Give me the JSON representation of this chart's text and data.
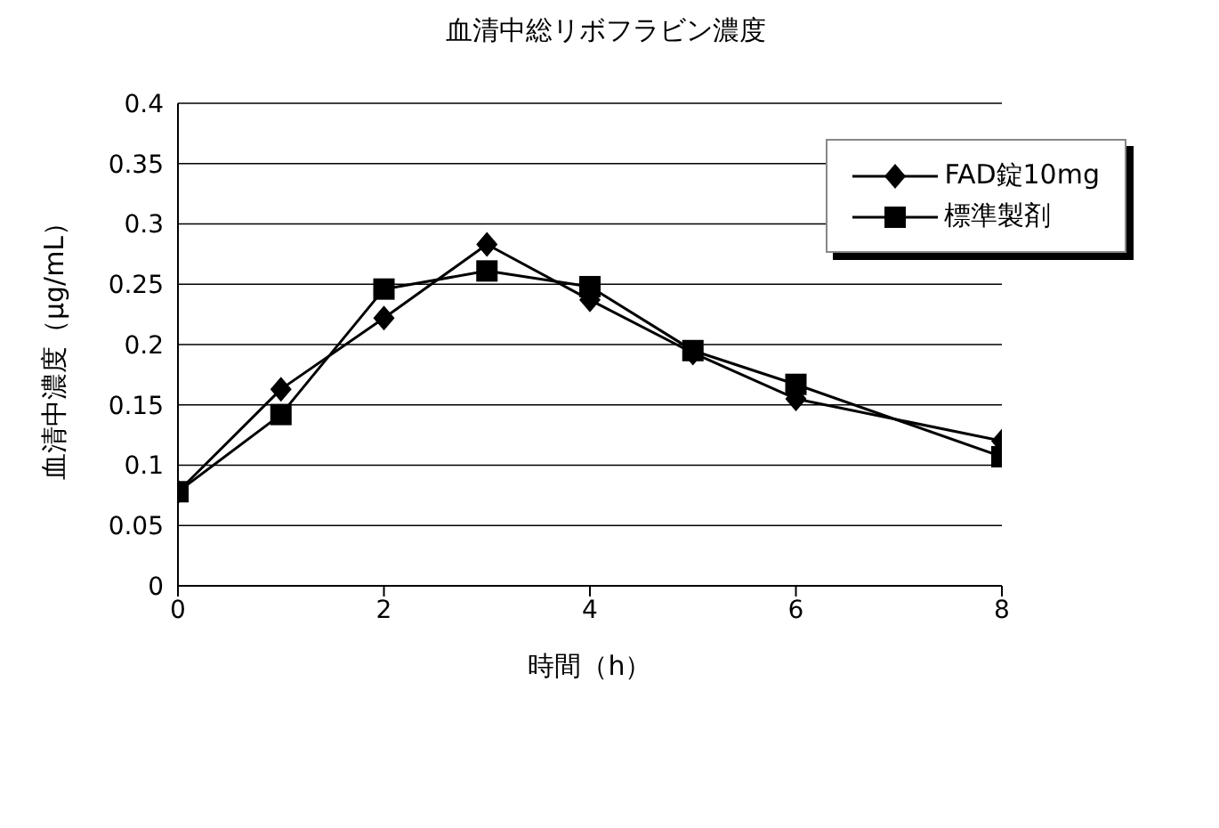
{
  "chart_data": {
    "type": "line",
    "title": "血清中総リボフラビン濃度",
    "xlabel": "時間（h）",
    "ylabel": "血清中濃度（μg/mL）",
    "x": [
      0,
      1,
      2,
      3,
      4,
      5,
      6,
      8
    ],
    "series": [
      {
        "name": "FAD錠10mg",
        "color": "#000000",
        "marker": "diamond",
        "values": [
          0.078,
          0.163,
          0.222,
          0.283,
          0.237,
          0.193,
          0.155,
          0.12
        ]
      },
      {
        "name": "標準製剤",
        "color": "#000000",
        "marker": "square",
        "values": [
          0.078,
          0.142,
          0.246,
          0.261,
          0.248,
          0.195,
          0.167,
          0.107
        ]
      }
    ],
    "xlim": [
      0,
      8
    ],
    "xticks": [
      0,
      2,
      4,
      6,
      8
    ],
    "ylim": [
      0,
      0.4
    ],
    "yticks": [
      0,
      0.05,
      0.1,
      0.15,
      0.2,
      0.25,
      0.3,
      0.35,
      0.4
    ],
    "grid": "y",
    "legend": "top right",
    "line_style": "solid"
  }
}
